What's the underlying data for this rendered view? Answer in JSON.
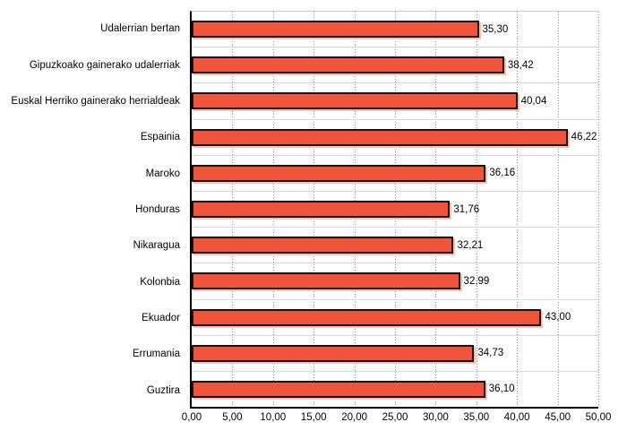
{
  "chart_data": {
    "type": "bar",
    "orientation": "horizontal",
    "title": "",
    "categories": [
      "Udalerrian bertan",
      "Gipuzkoako gainerako udalerriak",
      "Euskal Herriko gainerako herrialdeak",
      "Espainia",
      "Maroko",
      "Honduras",
      "Nikaragua",
      "Kolonbia",
      "Ekuador",
      "Errumania",
      "Guztira"
    ],
    "values": [
      35.3,
      38.42,
      40.04,
      46.22,
      36.16,
      31.76,
      32.21,
      32.99,
      43.0,
      34.73,
      36.1
    ],
    "value_labels": [
      "35,30",
      "38,42",
      "40,04",
      "46,22",
      "36,16",
      "31,76",
      "32,21",
      "32,99",
      "43,00",
      "34,73",
      "36,10"
    ],
    "xlabel": "",
    "ylabel": "",
    "xlim": [
      0,
      50
    ],
    "x_ticks": [
      "0,00",
      "5,00",
      "10,00",
      "15,00",
      "20,00",
      "25,00",
      "30,00",
      "35,00",
      "40,00",
      "45,00",
      "50,00"
    ],
    "grid": "vertical-dotted",
    "legend": "none",
    "colors": {
      "bar_fill": "#f0553c",
      "bar_border": "#151515",
      "bar_shadow": "#f7bfae",
      "gridline": "#8a8a8a",
      "row_line": "#d6d6d6",
      "axis": "#000000",
      "plot_top_border": "#cccccc",
      "background": "#ffffff",
      "text": "#000000"
    }
  }
}
